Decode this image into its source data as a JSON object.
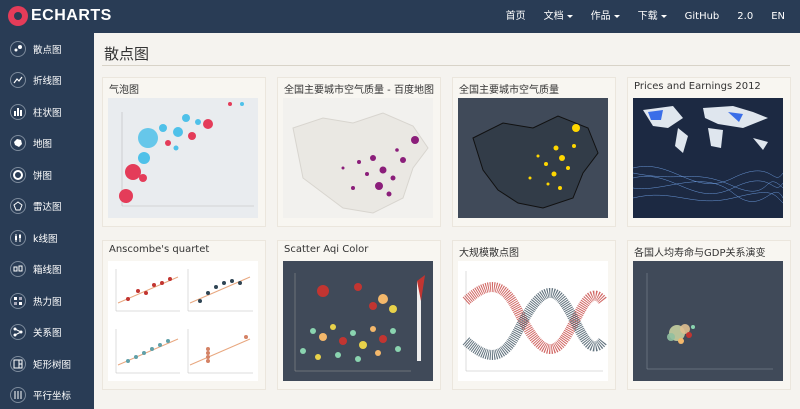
{
  "topbar": {
    "logo_text": "ECHARTS",
    "nav": [
      {
        "label": "首页",
        "dropdown": false
      },
      {
        "label": "文档",
        "dropdown": true
      },
      {
        "label": "作品",
        "dropdown": true
      },
      {
        "label": "下载",
        "dropdown": true
      },
      {
        "label": "GitHub",
        "dropdown": false
      },
      {
        "label": "2.0",
        "dropdown": false
      },
      {
        "label": "EN",
        "dropdown": false
      }
    ]
  },
  "sidebar": {
    "items": [
      {
        "label": "散点图",
        "icon": "scatter-icon"
      },
      {
        "label": "折线图",
        "icon": "line-icon"
      },
      {
        "label": "柱状图",
        "icon": "bar-icon"
      },
      {
        "label": "地图",
        "icon": "map-icon"
      },
      {
        "label": "饼图",
        "icon": "pie-icon"
      },
      {
        "label": "雷达图",
        "icon": "radar-icon"
      },
      {
        "label": "k线图",
        "icon": "candlestick-icon"
      },
      {
        "label": "箱线图",
        "icon": "boxplot-icon"
      },
      {
        "label": "热力图",
        "icon": "heatmap-icon"
      },
      {
        "label": "关系图",
        "icon": "graph-icon"
      },
      {
        "label": "矩形树图",
        "icon": "treemap-icon"
      },
      {
        "label": "平行坐标",
        "icon": "parallel-icon"
      }
    ]
  },
  "main": {
    "section_title": "散点图",
    "cards": [
      {
        "title": "气泡图"
      },
      {
        "title": "全国主要城市空气质量 - 百度地图"
      },
      {
        "title": "全国主要城市空气质量"
      },
      {
        "title": "Prices and Earnings 2012"
      },
      {
        "title": "Anscombe's quartet"
      },
      {
        "title": "Scatter Aqi Color"
      },
      {
        "title": "大规模散点图"
      },
      {
        "title": "各国人均寿命与GDP关系演变"
      }
    ]
  },
  "colors": {
    "nav_bg": "#293c55",
    "accent": "#e43c59",
    "page_bg": "#f5f3ef"
  }
}
